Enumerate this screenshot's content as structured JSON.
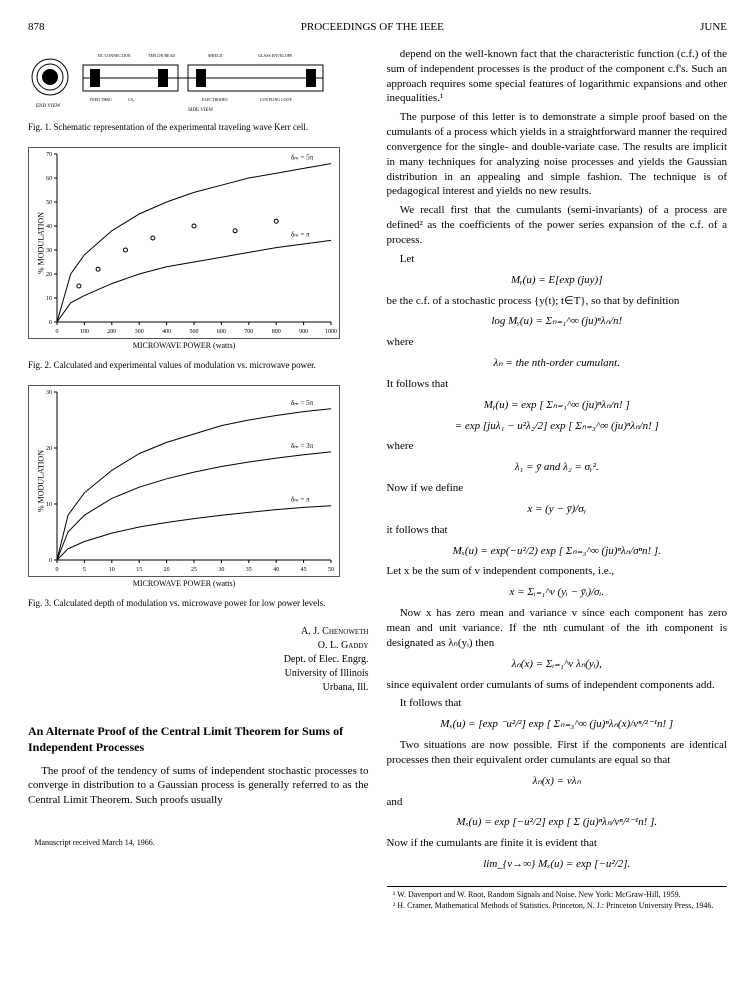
{
  "header": {
    "page": "878",
    "title": "PROCEEDINGS OF THE IEEE",
    "month": "JUNE"
  },
  "fig1": {
    "caption": "Fig. 1.  Schematic representation of the experimental traveling wave Kerr cell.",
    "labels": [
      "DC CONNECTION",
      "TEFLON BEAD",
      "SHIELD",
      "GLASS ENVELOPE",
      "END VIEW",
      "FEED THRU",
      "CS",
      "ELECTRODES",
      "COUPLING LOOP",
      "SIDE VIEW"
    ],
    "colors": {
      "stroke": "#000000",
      "fill": "#ffffff"
    }
  },
  "fig2": {
    "caption": "Fig. 2.  Calculated and experimental values of modulation vs. microwave power.",
    "ylabel": "% MODULATION",
    "xlabel": "MICROWAVE POWER (watts)",
    "xlim": [
      0,
      1000
    ],
    "ylim": [
      0,
      70
    ],
    "xticks": [
      0,
      100,
      200,
      300,
      400,
      500,
      600,
      700,
      800,
      900,
      1000
    ],
    "yticks": [
      0,
      10,
      20,
      30,
      40,
      50,
      60,
      70
    ],
    "series": [
      {
        "label": "δₘ = 5π",
        "x": [
          0,
          50,
          100,
          200,
          300,
          400,
          500,
          600,
          700,
          800,
          900,
          1000
        ],
        "y": [
          0,
          20,
          28,
          38,
          45,
          50,
          54,
          57,
          60,
          62,
          64,
          66
        ],
        "color": "#000000"
      },
      {
        "label": "δₘ = π",
        "x": [
          0,
          50,
          100,
          200,
          300,
          400,
          500,
          600,
          700,
          800,
          900,
          1000
        ],
        "y": [
          0,
          8,
          11,
          16,
          20,
          23,
          25,
          27,
          29,
          31,
          32.5,
          34
        ],
        "color": "#000000"
      }
    ],
    "points": {
      "x": [
        80,
        150,
        250,
        350,
        500,
        650,
        800
      ],
      "y": [
        15,
        22,
        30,
        35,
        40,
        38,
        42
      ],
      "marker": "o",
      "color": "#000000"
    },
    "line_width": 1,
    "grid": false
  },
  "fig3": {
    "caption": "Fig. 3.  Calculated depth of modulation vs. microwave power for low power levels.",
    "ylabel": "% MODULATION",
    "xlabel": "MICROWAVE POWER (watts)",
    "xlim": [
      0,
      50
    ],
    "ylim": [
      0,
      30
    ],
    "xticks": [
      0,
      5,
      10,
      15,
      20,
      25,
      30,
      35,
      40,
      45,
      50
    ],
    "yticks": [
      0,
      10,
      20,
      30
    ],
    "series": [
      {
        "label": "δₘ = 5π",
        "x": [
          0,
          2,
          5,
          10,
          15,
          20,
          25,
          30,
          35,
          40,
          45,
          50
        ],
        "y": [
          0,
          8,
          12,
          16,
          19,
          21,
          22.5,
          24,
          25,
          25.8,
          26.5,
          27
        ],
        "color": "#000000"
      },
      {
        "label": "δₘ = 3π",
        "x": [
          0,
          2,
          5,
          10,
          15,
          20,
          25,
          30,
          35,
          40,
          45,
          50
        ],
        "y": [
          0,
          5,
          8,
          11,
          13,
          14.5,
          15.7,
          16.7,
          17.5,
          18.2,
          18.8,
          19.3
        ],
        "color": "#000000"
      },
      {
        "label": "δₘ = π",
        "x": [
          0,
          2,
          5,
          10,
          15,
          20,
          25,
          30,
          35,
          40,
          45,
          50
        ],
        "y": [
          0,
          2,
          3.3,
          4.8,
          5.9,
          6.7,
          7.4,
          8,
          8.5,
          9,
          9.4,
          9.7
        ],
        "color": "#000000"
      }
    ],
    "line_width": 1,
    "grid": false
  },
  "authors": {
    "line1": "A. J. Chenoweth",
    "line2": "O. L. Gaddy",
    "line3": "Dept. of Elec. Engrg.",
    "line4": "University of Illinois",
    "line5": "Urbana, Ill."
  },
  "article2": {
    "title": "An Alternate Proof of the Central Limit Theorem for Sums of Independent Processes",
    "p1": "The proof of the tendency of sums of independent stochastic processes to converge in distribution to a Gaussian process is generally referred to as the Central Limit Theorem. Such proofs usually",
    "manuscript": "Manuscript received March 14, 1966."
  },
  "rightcol": {
    "p1": "depend on the well-known fact that the characteristic function (c.f.) of the sum of independent processes is the product of the component c.f's. Such an approach requires some special features of logarithmic expansions and other inequalities.¹",
    "p2": "The purpose of this letter is to demonstrate a simple proof based on the cumulants of a process which yields in a straightforward manner the required convergence for the single- and double-variate case. The results are implicit in many techniques for analyzing noise processes and yields the Gaussian distribution in an appealing and simple fashion. The technique is of pedagogical interest and yields no new results.",
    "p3": "We recall first that the cumulants (semi-invariants) of a process are defined² as the coefficients of the power series expansion of the c.f. of a process.",
    "let": "Let",
    "eq1": "Mᵧ(u) = E[exp (juy)]",
    "p4": "be the c.f. of a stochastic process {y(t); t∈T}, so that by definition",
    "eq2": "log Mᵧ(u) = Σₙ₌₁^∞ (ju)ⁿλₙ/n!",
    "where1": "where",
    "eq3": "λₙ = the nth-order cumulant.",
    "p5": "It follows that",
    "eq4": "Mᵧ(u) = exp [ Σₙ₌₁^∞ (ju)ⁿλₙ/n! ]",
    "eq5": "= exp [juλ₁ − u²λ₂/2] exp [ Σₙ₌₃^∞ (ju)ⁿλₙ/n! ]",
    "where2": "where",
    "eq6": "λ₁ = ȳ   and   λ₂ = σᵧ².",
    "p6": "Now if we define",
    "eq7": "x = (y − ȳ)/σᵧ",
    "p7": "it follows that",
    "eq8": "Mₓ(u) = exp(−u²/2) exp [ Σₙ₌₃^∞ (ju)ⁿλₙ/σⁿn! ].",
    "p8": "Let x be the sum of v independent components, i.e.,",
    "eq9": "x = Σᵢ₌₁^v (yᵢ − ȳᵢ)/σᵢ.",
    "p9": "Now x has zero mean and variance v since each component has zero mean and unit variance. If the nth cumulant of the ith component is designated as λₙ(yᵢ) then",
    "eq10": "λₙ(x) = Σᵢ₌₁^v λₙ(yᵢ),",
    "p10": "since equivalent order cumulants of sums of independent components add.",
    "p11": "It follows that",
    "eq11": "Mₓ(u) = [exp ⁻u²/²] exp [ Σₙ₌₃^∞ (ju)ⁿλₙ(x)/vⁿ/²⁻¹n! ]",
    "p12": "Two situations are now possible. First if the components are identical processes then their equivalent order cumulants are equal so that",
    "eq12": "λₙ(x) = vλₙ",
    "and": "and",
    "eq13": "Mₓ(u) = exp [−u²/2] exp [ Σ (ju)ⁿλₙ/vⁿ/²⁻¹n! ].",
    "p13": "Now if the cumulants are finite it is evident that",
    "eq14": "lim_{v→∞} Mₓ(u) = exp [−u²/2].",
    "fn1": "¹ W. Davenport and W. Root, Random Signals and Noise. New York: McGraw-Hill, 1959.",
    "fn2": "² H. Cramer, Mathematical Methods of Statistics. Princeton, N. J.: Princeton University Press, 1946."
  }
}
